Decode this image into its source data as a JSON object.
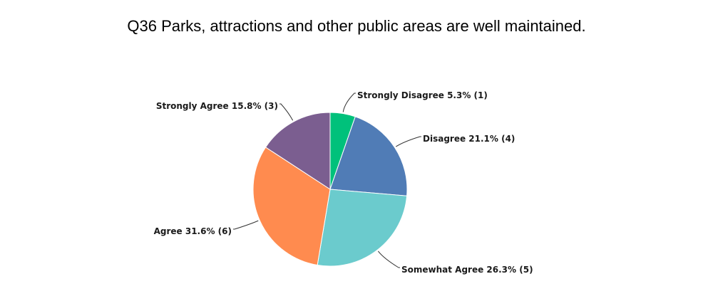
{
  "chart_data": {
    "type": "pie",
    "title": "Q36 Parks, attractions and other public areas are well maintained.",
    "slices": [
      {
        "label": "Strongly Disagree",
        "value": 5.3,
        "count": 1,
        "display": "Strongly Disagree 5.3% (1)",
        "color": "#00c17b"
      },
      {
        "label": "Disagree",
        "value": 21.1,
        "count": 4,
        "display": "Disagree 21.1% (4)",
        "color": "#507cb6"
      },
      {
        "label": "Somewhat Agree",
        "value": 26.3,
        "count": 5,
        "display": "Somewhat Agree 26.3% (5)",
        "color": "#6bcbcd"
      },
      {
        "label": "Agree",
        "value": 31.6,
        "count": 6,
        "display": "Agree 31.6% (6)",
        "color": "#ff8b4f"
      },
      {
        "label": "Strongly Agree",
        "value": 15.8,
        "count": 3,
        "display": "Strongly Agree 15.8% (3)",
        "color": "#7b5e90"
      }
    ]
  }
}
